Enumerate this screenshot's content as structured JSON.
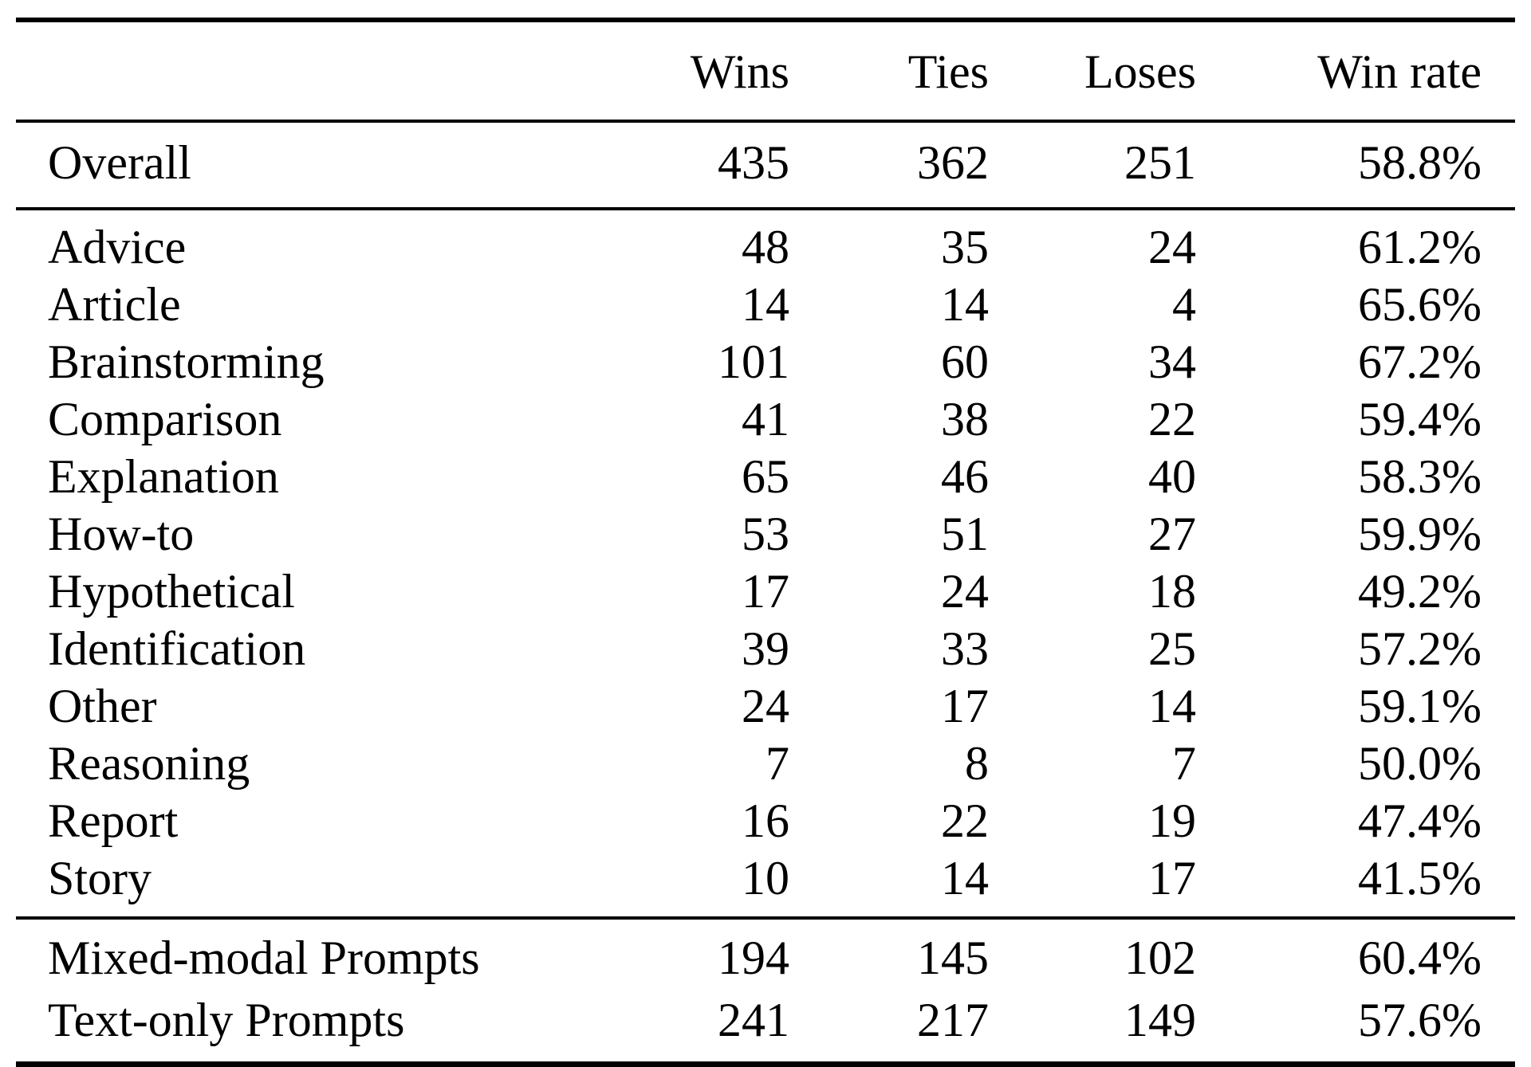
{
  "table": {
    "header": {
      "label": "",
      "wins": "Wins",
      "ties": "Ties",
      "loses": "Loses",
      "win_rate": "Win rate"
    },
    "overall": {
      "label": "Overall",
      "wins": "435",
      "ties": "362",
      "loses": "251",
      "win_rate": "58.8%"
    },
    "categories": [
      {
        "label": "Advice",
        "wins": "48",
        "ties": "35",
        "loses": "24",
        "win_rate": "61.2%"
      },
      {
        "label": "Article",
        "wins": "14",
        "ties": "14",
        "loses": "4",
        "win_rate": "65.6%"
      },
      {
        "label": "Brainstorming",
        "wins": "101",
        "ties": "60",
        "loses": "34",
        "win_rate": "67.2%"
      },
      {
        "label": "Comparison",
        "wins": "41",
        "ties": "38",
        "loses": "22",
        "win_rate": "59.4%"
      },
      {
        "label": "Explanation",
        "wins": "65",
        "ties": "46",
        "loses": "40",
        "win_rate": "58.3%"
      },
      {
        "label": "How-to",
        "wins": "53",
        "ties": "51",
        "loses": "27",
        "win_rate": "59.9%"
      },
      {
        "label": "Hypothetical",
        "wins": "17",
        "ties": "24",
        "loses": "18",
        "win_rate": "49.2%"
      },
      {
        "label": "Identification",
        "wins": "39",
        "ties": "33",
        "loses": "25",
        "win_rate": "57.2%"
      },
      {
        "label": "Other",
        "wins": "24",
        "ties": "17",
        "loses": "14",
        "win_rate": "59.1%"
      },
      {
        "label": "Reasoning",
        "wins": "7",
        "ties": "8",
        "loses": "7",
        "win_rate": "50.0%"
      },
      {
        "label": "Report",
        "wins": "16",
        "ties": "22",
        "loses": "19",
        "win_rate": "47.4%"
      },
      {
        "label": "Story",
        "wins": "10",
        "ties": "14",
        "loses": "17",
        "win_rate": "41.5%"
      }
    ],
    "modality": [
      {
        "label": "Mixed-modal Prompts",
        "wins": "194",
        "ties": "145",
        "loses": "102",
        "win_rate": "60.4%"
      },
      {
        "label": "Text-only Prompts",
        "wins": "241",
        "ties": "217",
        "loses": "149",
        "win_rate": "57.6%"
      }
    ]
  },
  "chart_data": {
    "type": "table",
    "columns": [
      "",
      "Wins",
      "Ties",
      "Loses",
      "Win rate"
    ],
    "rows": [
      [
        "Overall",
        435,
        362,
        251,
        "58.8%"
      ],
      [
        "Advice",
        48,
        35,
        24,
        "61.2%"
      ],
      [
        "Article",
        14,
        14,
        4,
        "65.6%"
      ],
      [
        "Brainstorming",
        101,
        60,
        34,
        "67.2%"
      ],
      [
        "Comparison",
        41,
        38,
        22,
        "59.4%"
      ],
      [
        "Explanation",
        65,
        46,
        40,
        "58.3%"
      ],
      [
        "How-to",
        53,
        51,
        27,
        "59.9%"
      ],
      [
        "Hypothetical",
        17,
        24,
        18,
        "49.2%"
      ],
      [
        "Identification",
        39,
        33,
        25,
        "57.2%"
      ],
      [
        "Other",
        24,
        17,
        14,
        "59.1%"
      ],
      [
        "Reasoning",
        7,
        8,
        7,
        "50.0%"
      ],
      [
        "Report",
        16,
        22,
        19,
        "47.4%"
      ],
      [
        "Story",
        10,
        14,
        17,
        "41.5%"
      ],
      [
        "Mixed-modal Prompts",
        194,
        145,
        102,
        "60.4%"
      ],
      [
        "Text-only Prompts",
        241,
        217,
        149,
        "57.6%"
      ]
    ]
  }
}
